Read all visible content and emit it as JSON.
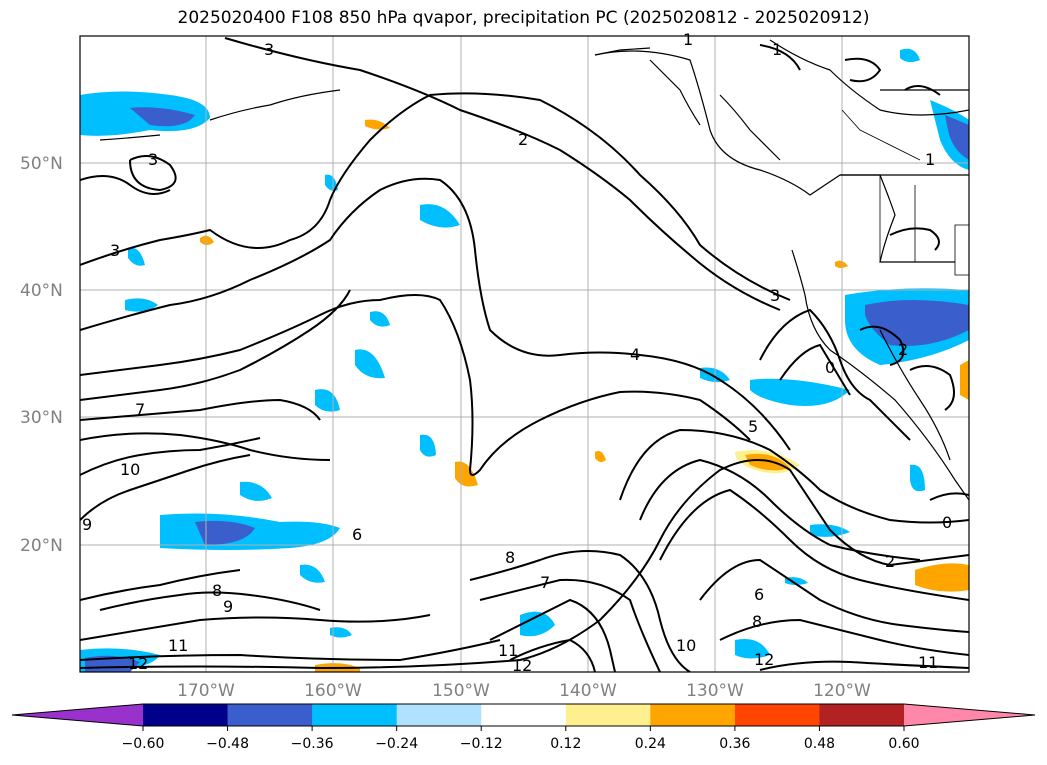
{
  "title": "2025020400 F108 850 hPa qvapor, precipitation PC (2025020812 - 2025020912)",
  "lat_labels": [
    "50°N",
    "40°N",
    "30°N",
    "20°N"
  ],
  "lon_labels": [
    "170°W",
    "160°W",
    "150°W",
    "140°W",
    "130°W",
    "120°W"
  ],
  "colorbar": {
    "ticks": [
      "−0.60",
      "−0.48",
      "−0.36",
      "−0.24",
      "−0.12",
      "0.12",
      "0.24",
      "0.36",
      "0.48",
      "0.60"
    ],
    "colors": [
      "#9932cc",
      "#00008b",
      "#3a5fcd",
      "#00bfff",
      "#b0e2ff",
      "#ffffff",
      "#fff08f",
      "#ffa500",
      "#ff4500",
      "#b22222",
      "#ff88aa"
    ]
  },
  "contour_labels": [
    "3",
    "1",
    "1",
    "3",
    "3",
    "2",
    "4",
    "7",
    "5",
    "10",
    "9",
    "8",
    "9",
    "8",
    "7",
    "6",
    "8",
    "10",
    "11",
    "12",
    "11",
    "12",
    "12",
    "2",
    "0",
    "11",
    "3",
    "6",
    "0",
    "2",
    "1"
  ]
}
